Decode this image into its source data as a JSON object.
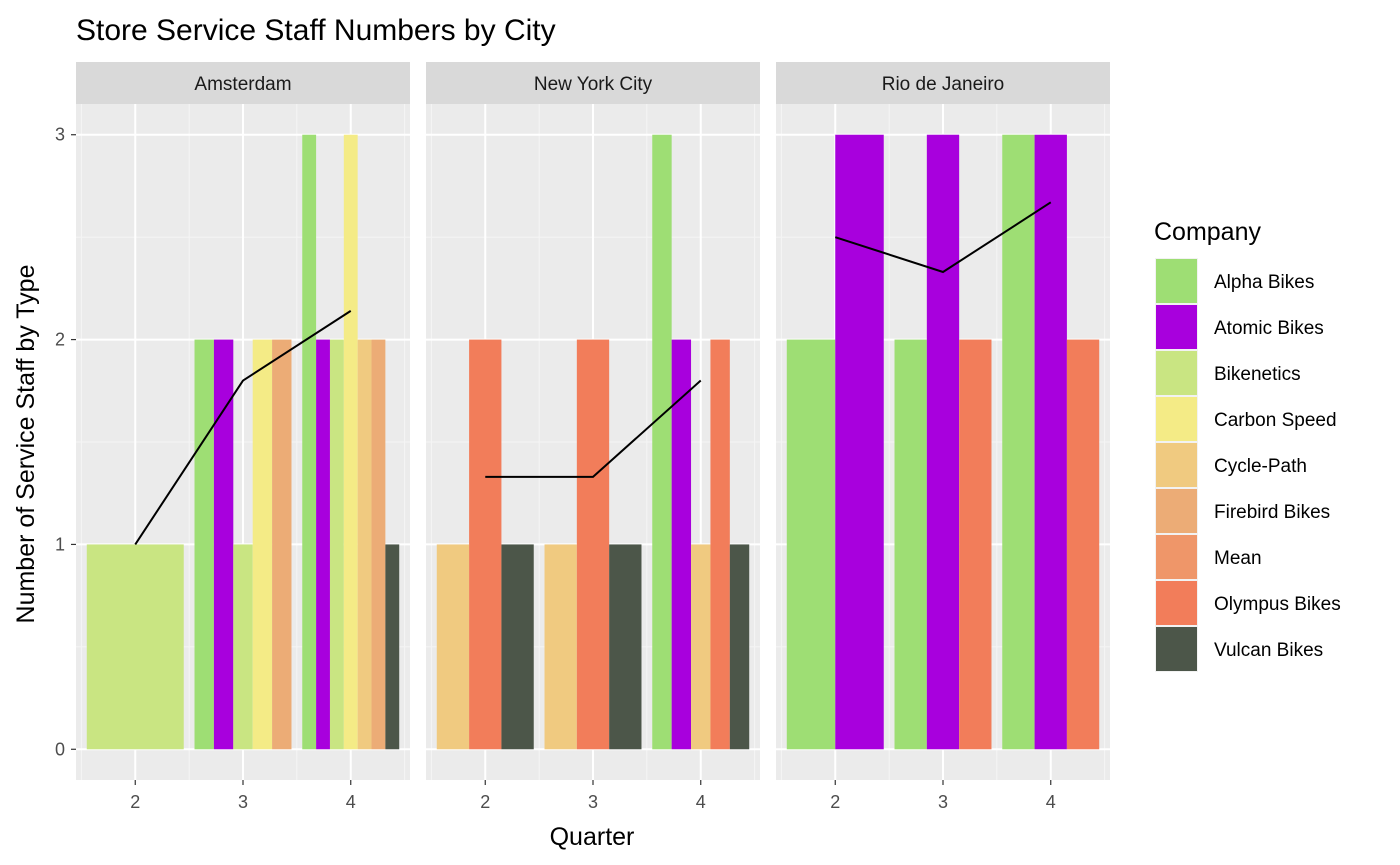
{
  "chart_data": {
    "type": "bar",
    "title": "Store Service Staff Numbers by City",
    "xlabel": "Quarter",
    "ylabel": "Number of Service Staff by Type",
    "ylim": [
      0,
      3
    ],
    "y_ticks": [
      "0",
      "1",
      "2",
      "3"
    ],
    "x_ticks": [
      "2",
      "3",
      "4"
    ],
    "grid": true,
    "legend": {
      "title": "Company",
      "placement": "right",
      "entries": [
        {
          "name": "Alpha Bikes",
          "color": "#9ede74"
        },
        {
          "name": "Atomic Bikes",
          "color": "#a800dd"
        },
        {
          "name": "Bikenetics",
          "color": "#c9e582"
        },
        {
          "name": "Carbon Speed",
          "color": "#f4eb86"
        },
        {
          "name": "Cycle-Path",
          "color": "#f0ca80"
        },
        {
          "name": "Firebird Bikes",
          "color": "#ecac76"
        },
        {
          "name": "Mean",
          "color": "#ef9669"
        },
        {
          "name": "Olympus Bikes",
          "color": "#f27d5a"
        },
        {
          "name": "Vulcan Bikes",
          "color": "#4c5649"
        }
      ]
    },
    "panels": [
      {
        "city": "Amsterdam",
        "quarters": [
          {
            "quarter": 2,
            "bars": [
              {
                "company": "Bikenetics",
                "value": 1
              }
            ]
          },
          {
            "quarter": 3,
            "bars": [
              {
                "company": "Alpha Bikes",
                "value": 2
              },
              {
                "company": "Atomic Bikes",
                "value": 2
              },
              {
                "company": "Bikenetics",
                "value": 1
              },
              {
                "company": "Carbon Speed",
                "value": 2
              },
              {
                "company": "Firebird Bikes",
                "value": 2
              }
            ]
          },
          {
            "quarter": 4,
            "bars": [
              {
                "company": "Alpha Bikes",
                "value": 3
              },
              {
                "company": "Atomic Bikes",
                "value": 2
              },
              {
                "company": "Bikenetics",
                "value": 2
              },
              {
                "company": "Carbon Speed",
                "value": 3
              },
              {
                "company": "Cycle-Path",
                "value": 2
              },
              {
                "company": "Firebird Bikes",
                "value": 2
              },
              {
                "company": "Vulcan Bikes",
                "value": 1
              }
            ]
          }
        ],
        "mean": [
          {
            "quarter": 2,
            "value": 1.0
          },
          {
            "quarter": 3,
            "value": 1.8
          },
          {
            "quarter": 4,
            "value": 2.14
          }
        ]
      },
      {
        "city": "New York City",
        "quarters": [
          {
            "quarter": 2,
            "bars": [
              {
                "company": "Cycle-Path",
                "value": 1
              },
              {
                "company": "Olympus Bikes",
                "value": 2
              },
              {
                "company": "Vulcan Bikes",
                "value": 1
              }
            ]
          },
          {
            "quarter": 3,
            "bars": [
              {
                "company": "Cycle-Path",
                "value": 1
              },
              {
                "company": "Olympus Bikes",
                "value": 2
              },
              {
                "company": "Vulcan Bikes",
                "value": 1
              }
            ]
          },
          {
            "quarter": 4,
            "bars": [
              {
                "company": "Alpha Bikes",
                "value": 3
              },
              {
                "company": "Atomic Bikes",
                "value": 2
              },
              {
                "company": "Cycle-Path",
                "value": 1
              },
              {
                "company": "Olympus Bikes",
                "value": 2
              },
              {
                "company": "Vulcan Bikes",
                "value": 1
              }
            ]
          }
        ],
        "mean": [
          {
            "quarter": 2,
            "value": 1.33
          },
          {
            "quarter": 3,
            "value": 1.33
          },
          {
            "quarter": 4,
            "value": 1.8
          }
        ]
      },
      {
        "city": "Rio de Janeiro",
        "quarters": [
          {
            "quarter": 2,
            "bars": [
              {
                "company": "Alpha Bikes",
                "value": 2
              },
              {
                "company": "Atomic Bikes",
                "value": 3
              }
            ]
          },
          {
            "quarter": 3,
            "bars": [
              {
                "company": "Alpha Bikes",
                "value": 2
              },
              {
                "company": "Atomic Bikes",
                "value": 3
              },
              {
                "company": "Olympus Bikes",
                "value": 2
              }
            ]
          },
          {
            "quarter": 4,
            "bars": [
              {
                "company": "Alpha Bikes",
                "value": 3
              },
              {
                "company": "Atomic Bikes",
                "value": 3
              },
              {
                "company": "Olympus Bikes",
                "value": 2
              }
            ]
          }
        ],
        "mean": [
          {
            "quarter": 2,
            "value": 2.5
          },
          {
            "quarter": 3,
            "value": 2.33
          },
          {
            "quarter": 4,
            "value": 2.67
          }
        ]
      }
    ]
  }
}
